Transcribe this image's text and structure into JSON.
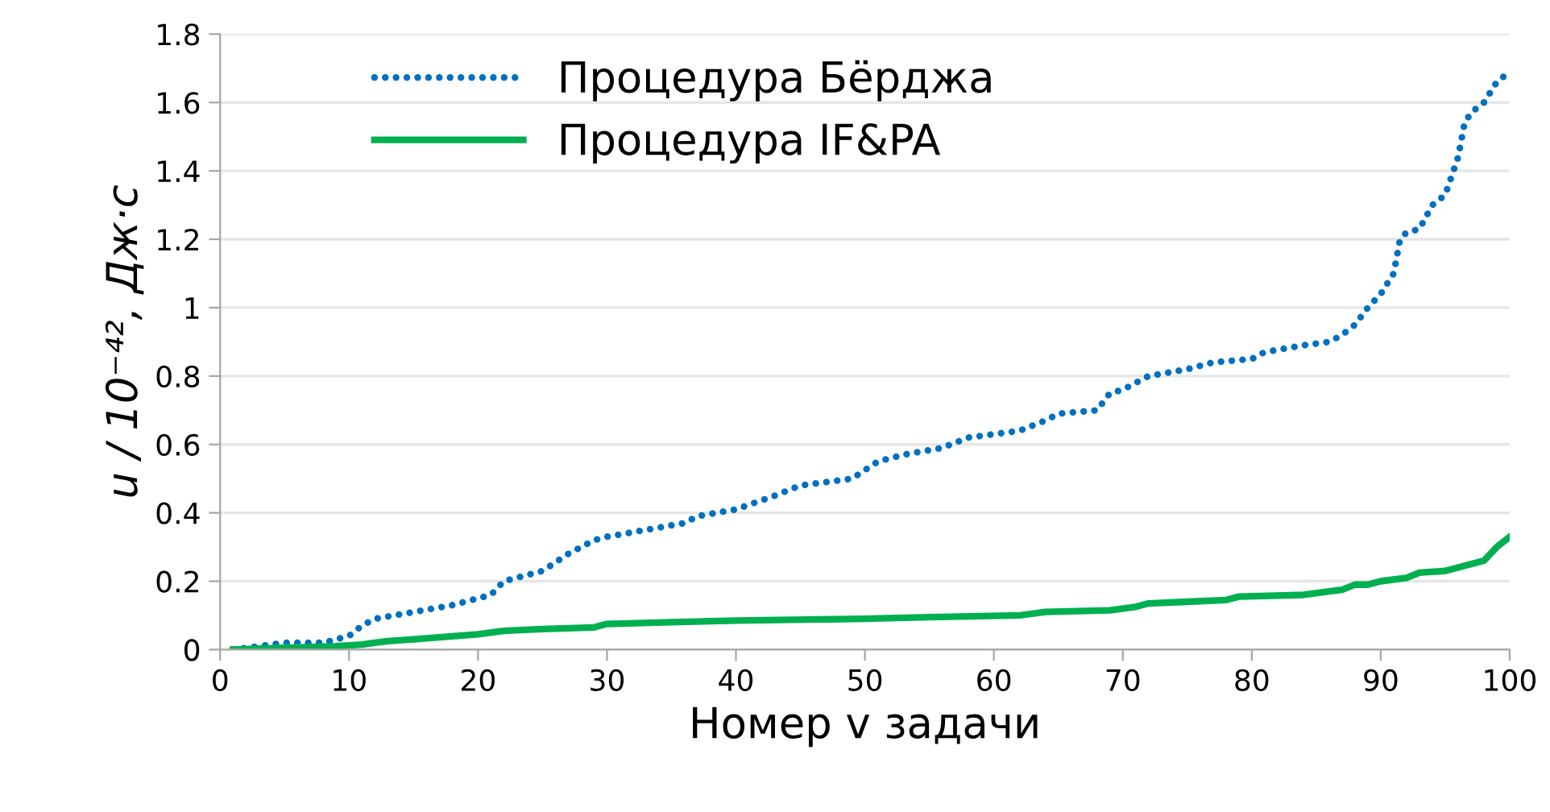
{
  "chart_data": {
    "type": "line",
    "xlabel": "Номер v задачи",
    "ylabel": "u / 10⁻⁴², Дж·с",
    "xlim": [
      0,
      100
    ],
    "xticks": [
      0,
      10,
      20,
      30,
      40,
      50,
      60,
      70,
      80,
      90,
      100
    ],
    "ylim": [
      0,
      1.8
    ],
    "yticks": [
      0,
      0.2,
      0.4,
      0.6,
      0.8,
      1,
      1.2,
      1.4,
      1.6,
      1.8
    ],
    "grid": "y",
    "legend": "top left",
    "marker": "none",
    "series": [
      {
        "name": "Процедура Бёрджа",
        "color": "#0070c0",
        "line_style": "dotted",
        "x": [
          1,
          5,
          8,
          10,
          11,
          12,
          15,
          18,
          20,
          21,
          22,
          25,
          27,
          29,
          30,
          33,
          36,
          37,
          40,
          43,
          45,
          49,
          51,
          53,
          56,
          58,
          62,
          64,
          65,
          68,
          69,
          70,
          72,
          75,
          77,
          80,
          81,
          84,
          86,
          87,
          88,
          89,
          90,
          91,
          91.5,
          92,
          93,
          94,
          95,
          96,
          96.5,
          97,
          98,
          99,
          100
        ],
        "values": [
          0,
          0.02,
          0.02,
          0.04,
          0.07,
          0.09,
          0.11,
          0.13,
          0.15,
          0.16,
          0.2,
          0.23,
          0.28,
          0.32,
          0.33,
          0.35,
          0.37,
          0.39,
          0.41,
          0.45,
          0.48,
          0.5,
          0.55,
          0.57,
          0.59,
          0.62,
          0.64,
          0.67,
          0.69,
          0.7,
          0.75,
          0.76,
          0.8,
          0.82,
          0.84,
          0.85,
          0.87,
          0.89,
          0.9,
          0.92,
          0.95,
          1.0,
          1.04,
          1.1,
          1.2,
          1.22,
          1.23,
          1.3,
          1.33,
          1.44,
          1.54,
          1.57,
          1.6,
          1.66,
          1.69
        ]
      },
      {
        "name": "Процедура IF&PA",
        "color": "#00b050",
        "line_style": "solid",
        "x": [
          1,
          5,
          9,
          11,
          12,
          13,
          15,
          20,
          22,
          25,
          29,
          30,
          35,
          40,
          50,
          55,
          62,
          64,
          69,
          71,
          72,
          75,
          78,
          79,
          84,
          86,
          87,
          88,
          89,
          90,
          92,
          93,
          95,
          97,
          98,
          99,
          100
        ],
        "values": [
          0,
          0.005,
          0.01,
          0.015,
          0.02,
          0.025,
          0.03,
          0.045,
          0.055,
          0.06,
          0.065,
          0.075,
          0.08,
          0.085,
          0.09,
          0.095,
          0.1,
          0.11,
          0.115,
          0.125,
          0.135,
          0.14,
          0.145,
          0.155,
          0.16,
          0.17,
          0.175,
          0.19,
          0.19,
          0.2,
          0.21,
          0.225,
          0.23,
          0.25,
          0.26,
          0.3,
          0.33
        ]
      }
    ]
  }
}
